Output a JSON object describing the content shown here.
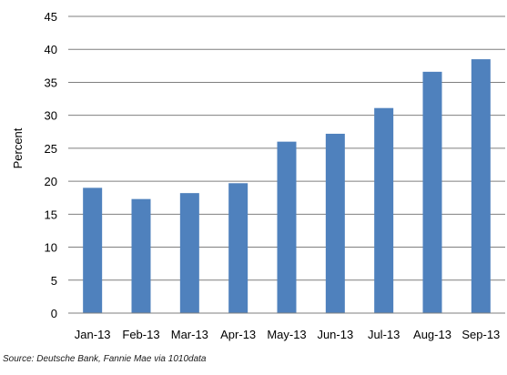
{
  "chart_data": {
    "type": "bar",
    "title": "",
    "xlabel": "",
    "ylabel": "Percent",
    "ylim": [
      0,
      45
    ],
    "yticks": [
      0,
      5,
      10,
      15,
      20,
      25,
      30,
      35,
      40,
      45
    ],
    "grid": true,
    "legend": "none",
    "categories": [
      "Jan-13",
      "Feb-13",
      "Mar-13",
      "Apr-13",
      "May-13",
      "Jun-13",
      "Jul-13",
      "Aug-13",
      "Sep-13"
    ],
    "values": [
      19.0,
      17.3,
      18.2,
      19.7,
      26.0,
      27.2,
      31.1,
      36.6,
      38.5
    ],
    "bar_color": "#4f81bd",
    "grid_color": "#7f7f7f",
    "source": "Source: Deutsche Bank, Fannie Mae via 1010data"
  }
}
